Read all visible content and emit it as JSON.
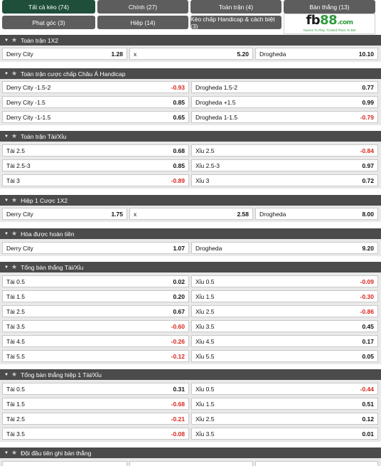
{
  "tabs": [
    {
      "label": "Tất cả kèo (74)"
    },
    {
      "label": "Chính (27)"
    },
    {
      "label": "Toàn trận (4)"
    },
    {
      "label": "Bàn thắng (13)"
    },
    {
      "label": "Phạt góc (3)"
    },
    {
      "label": "Hiệp (14)"
    },
    {
      "label": "Kèo chấp Handicap & cách biệt (3)"
    }
  ],
  "logo": {
    "fb": "fb",
    "n88": "88",
    "com": ".com",
    "tagline": "Games To Play, Trusted Place To Bet"
  },
  "sections": [
    {
      "title": "Toàn trận 1X2",
      "rows": [
        {
          "cells": [
            {
              "label": "Derry City",
              "odd": "1.28"
            },
            {
              "label": "x",
              "odd": "5.20"
            },
            {
              "label": "Drogheda",
              "odd": "10.10"
            }
          ]
        }
      ]
    },
    {
      "title": "Toàn trận cược chấp Châu Á Handicap",
      "rows": [
        {
          "cells": [
            {
              "label": "Derry City -1.5-2",
              "odd": "-0.93"
            },
            {
              "label": "Drogheda 1.5-2",
              "odd": "0.77"
            }
          ]
        },
        {
          "cells": [
            {
              "label": "Derry City -1.5",
              "odd": "0.85"
            },
            {
              "label": "Drogheda +1.5",
              "odd": "0.99"
            }
          ]
        },
        {
          "cells": [
            {
              "label": "Derry City -1-1.5",
              "odd": "0.65"
            },
            {
              "label": "Drogheda 1-1.5",
              "odd": "-0.79"
            }
          ]
        }
      ]
    },
    {
      "title": "Toàn trận Tài/Xỉu",
      "rows": [
        {
          "cells": [
            {
              "label": "Tài 2.5",
              "odd": "0.68"
            },
            {
              "label": "Xỉu 2.5",
              "odd": "-0.84"
            }
          ]
        },
        {
          "cells": [
            {
              "label": "Tài 2.5-3",
              "odd": "0.85"
            },
            {
              "label": "Xỉu 2.5-3",
              "odd": "0.97"
            }
          ]
        },
        {
          "cells": [
            {
              "label": "Tài 3",
              "odd": "-0.89"
            },
            {
              "label": "Xỉu 3",
              "odd": "0.72"
            }
          ]
        }
      ]
    },
    {
      "title": "Hiệp 1 Cược 1X2",
      "rows": [
        {
          "cells": [
            {
              "label": "Derry City",
              "odd": "1.75"
            },
            {
              "label": "x",
              "odd": "2.58"
            },
            {
              "label": "Drogheda",
              "odd": "8.00"
            }
          ]
        }
      ]
    },
    {
      "title": "Hòa được hoàn tiền",
      "rows": [
        {
          "cells": [
            {
              "label": "Derry City",
              "odd": "1.07"
            },
            {
              "label": "Drogheda",
              "odd": "9.20"
            }
          ]
        }
      ]
    },
    {
      "title": "Tổng bàn thắng Tài/Xỉu",
      "rows": [
        {
          "cells": [
            {
              "label": "Tài 0.5",
              "odd": "0.02"
            },
            {
              "label": "Xỉu 0.5",
              "odd": "-0.09"
            }
          ]
        },
        {
          "cells": [
            {
              "label": "Tài 1.5",
              "odd": "0.20"
            },
            {
              "label": "Xỉu 1.5",
              "odd": "-0.30"
            }
          ]
        },
        {
          "cells": [
            {
              "label": "Tài 2.5",
              "odd": "0.67"
            },
            {
              "label": "Xỉu 2.5",
              "odd": "-0.86"
            }
          ]
        },
        {
          "cells": [
            {
              "label": "Tài 3.5",
              "odd": "-0.60"
            },
            {
              "label": "Xỉu 3.5",
              "odd": "0.45"
            }
          ]
        },
        {
          "cells": [
            {
              "label": "Tài 4.5",
              "odd": "-0.26"
            },
            {
              "label": "Xỉu 4.5",
              "odd": "0.17"
            }
          ]
        },
        {
          "cells": [
            {
              "label": "Tài 5.5",
              "odd": "-0.12"
            },
            {
              "label": "Xỉu 5.5",
              "odd": "0.05"
            }
          ]
        }
      ]
    },
    {
      "title": "Tổng bàn thắng hiệp 1 Tài/Xỉu",
      "rows": [
        {
          "cells": [
            {
              "label": "Tài 0.5",
              "odd": "0.31"
            },
            {
              "label": "Xỉu 0.5",
              "odd": "-0.44"
            }
          ]
        },
        {
          "cells": [
            {
              "label": "Tài 1.5",
              "odd": "-0.68"
            },
            {
              "label": "Xỉu 1.5",
              "odd": "0.51"
            }
          ]
        },
        {
          "cells": [
            {
              "label": "Tài 2.5",
              "odd": "-0.21"
            },
            {
              "label": "Xỉu 2.5",
              "odd": "0.12"
            }
          ]
        },
        {
          "cells": [
            {
              "label": "Tài 3.5",
              "odd": "-0.08"
            },
            {
              "label": "Xỉu 3.5",
              "odd": "0.01"
            }
          ]
        }
      ]
    },
    {
      "title": "Đội đầu tiên ghi bàn thắng",
      "rows": [
        {
          "cells": [
            {
              "label": "",
              "odd": ""
            },
            {
              "label": "",
              "odd": ""
            },
            {
              "label": "",
              "odd": ""
            }
          ]
        }
      ]
    }
  ],
  "colors": {
    "header_bg": "#4b4b4b",
    "active_tab": "#1f4f3a",
    "tab_bg": "#5d5d5d",
    "negative": "#d9251c",
    "logo_green": "#2e9b3c"
  },
  "icons": {
    "collapse": "caret-down-icon",
    "favorite": "star-icon"
  }
}
